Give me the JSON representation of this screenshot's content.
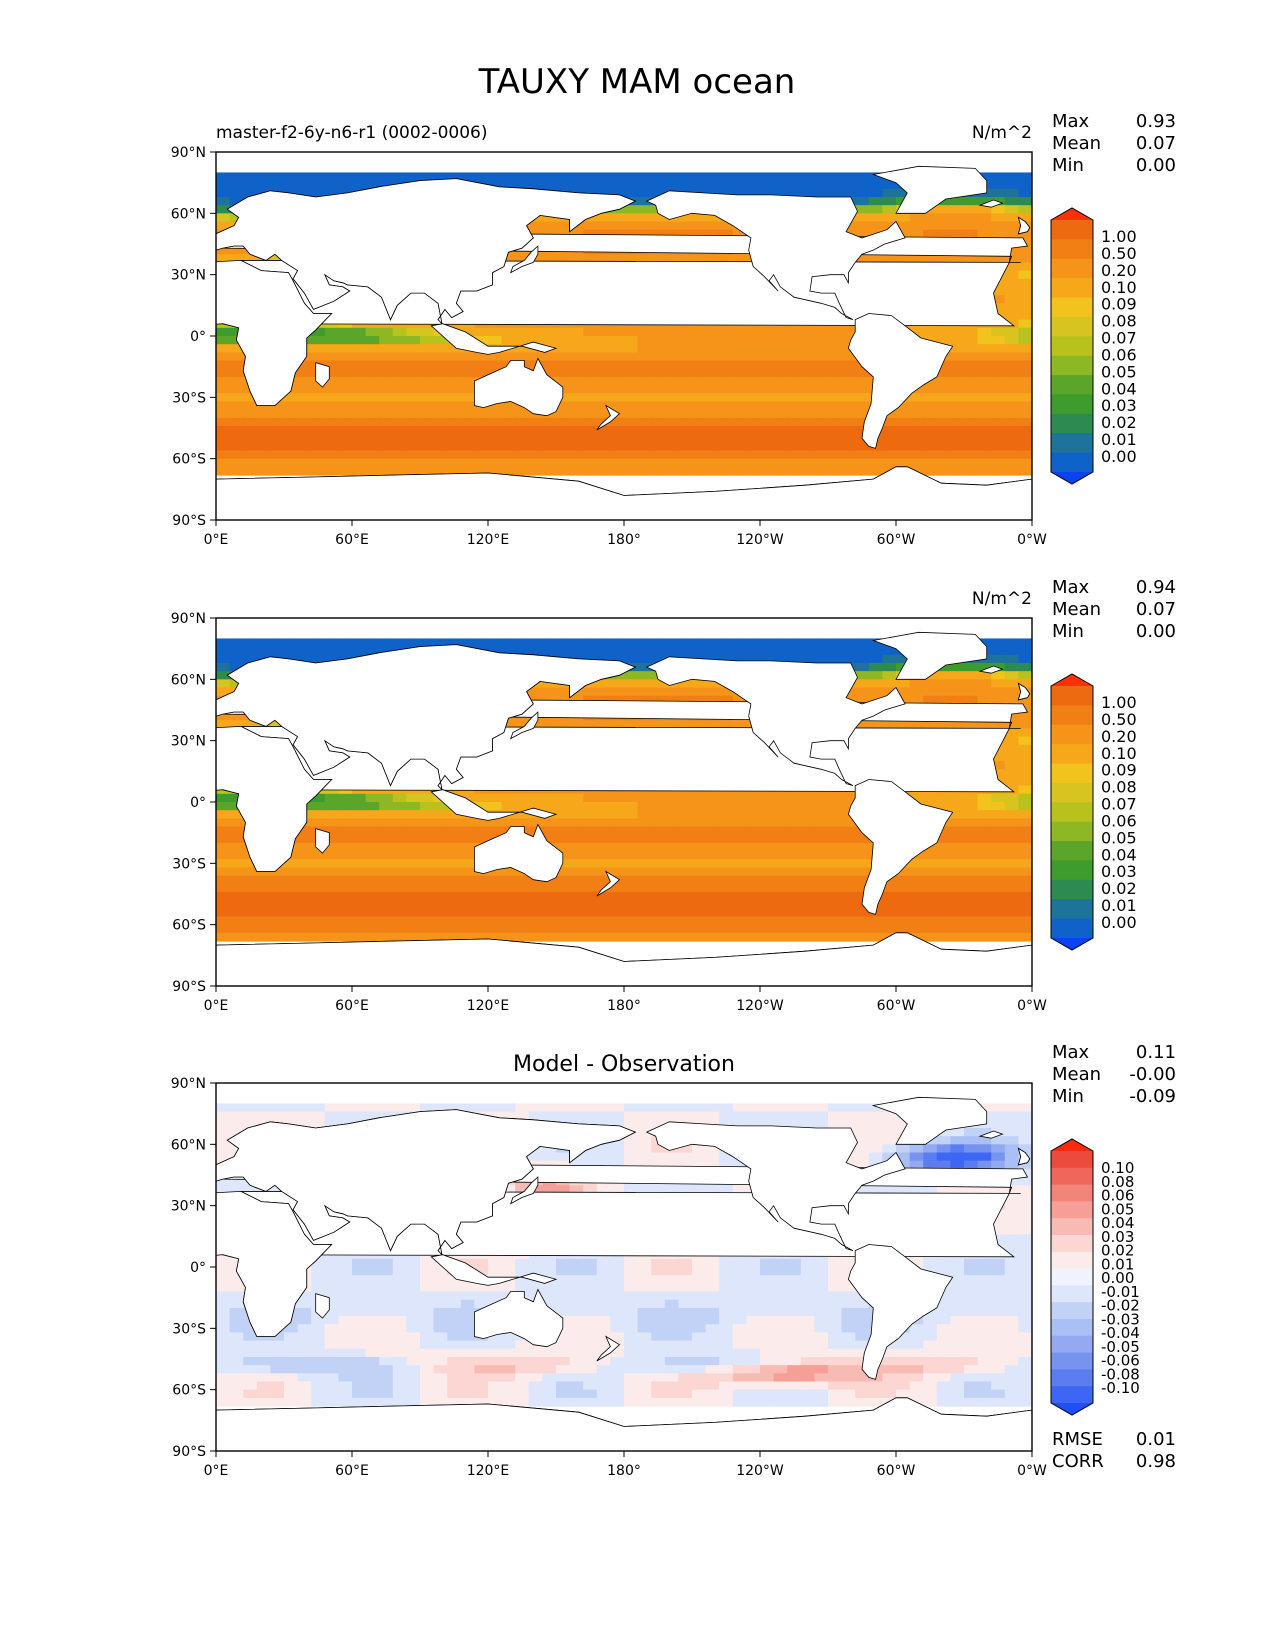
{
  "figure_title": "TAUXY MAM ocean",
  "lat_ticks": [
    "90°N",
    "60°N",
    "30°N",
    "0°",
    "30°S",
    "60°S",
    "90°S"
  ],
  "lon_ticks": [
    "0°E",
    "60°E",
    "120°E",
    "180°",
    "120°W",
    "60°W",
    "0°W"
  ],
  "stat_labels": {
    "max": "Max",
    "mean": "Mean",
    "min": "Min",
    "rmse": "RMSE",
    "corr": "CORR"
  },
  "colors": {
    "abs_levels": [
      "#0a43f2",
      "#0f63c8",
      "#1d739a",
      "#2e8b4f",
      "#3e9b2e",
      "#5ba52a",
      "#8db823",
      "#b9c21d",
      "#d8c41f",
      "#f2c21d",
      "#f6a81a",
      "#f6941a",
      "#f17f14",
      "#ee6a0e",
      "#ff3006"
    ],
    "diff_levels": [
      "#1f4ffc",
      "#3e66f5",
      "#5a7df0",
      "#7693ee",
      "#93aaf0",
      "#aabff3",
      "#c2d1f6",
      "#dde6fa",
      "#f1f3fc",
      "#fbeceb",
      "#fbd6d2",
      "#f8bbb4",
      "#f59f96",
      "#f28479",
      "#ef675a",
      "#ec4a3c",
      "#f72b10"
    ],
    "land": "#ffffff",
    "coast": "#000000"
  },
  "chart_data": [
    {
      "type": "heatmap",
      "title": "",
      "left_label": "master-f2-6y-n6-r1 (0002-0006)",
      "units": "N/m^2",
      "stats": {
        "max": "0.93",
        "mean": "0.07",
        "min": "0.00"
      },
      "colorbar_ticks": [
        "1.00",
        "0.50",
        "0.20",
        "0.10",
        "0.09",
        "0.08",
        "0.07",
        "0.06",
        "0.05",
        "0.04",
        "0.03",
        "0.02",
        "0.01",
        "0.00"
      ],
      "xlim": [
        0,
        360
      ],
      "ylim": [
        -90,
        90
      ],
      "variant": "model"
    },
    {
      "type": "heatmap",
      "title": "",
      "left_label": "",
      "units": "N/m^2",
      "stats": {
        "max": "0.94",
        "mean": "0.07",
        "min": "0.00"
      },
      "colorbar_ticks": [
        "1.00",
        "0.50",
        "0.20",
        "0.10",
        "0.09",
        "0.08",
        "0.07",
        "0.06",
        "0.05",
        "0.04",
        "0.03",
        "0.02",
        "0.01",
        "0.00"
      ],
      "xlim": [
        0,
        360
      ],
      "ylim": [
        -90,
        90
      ],
      "variant": "obs"
    },
    {
      "type": "heatmap",
      "title": "Model - Observation",
      "left_label": "",
      "units": "",
      "stats": {
        "max": "0.11",
        "mean": "-0.00",
        "min": "-0.09",
        "rmse": "0.01",
        "corr": "0.98"
      },
      "colorbar_ticks": [
        "0.10",
        "0.08",
        "0.06",
        "0.05",
        "0.04",
        "0.03",
        "0.02",
        "0.01",
        "0.00",
        "-0.01",
        "-0.02",
        "-0.03",
        "-0.04",
        "-0.05",
        "-0.06",
        "-0.08",
        "-0.10"
      ],
      "xlim": [
        0,
        360
      ],
      "ylim": [
        -90,
        90
      ],
      "variant": "diff"
    }
  ]
}
